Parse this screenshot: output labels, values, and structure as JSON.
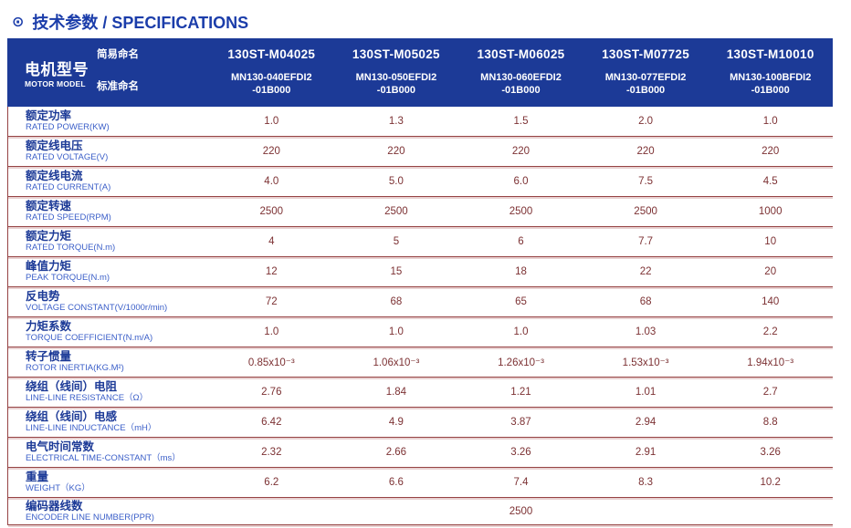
{
  "page_title": {
    "icon": "⊙",
    "text": "技术参数 / SPECIFICATIONS"
  },
  "colors": {
    "header_background": "#1c3a97",
    "title_blue": "#1b3daa",
    "label_zh_blue": "#1c3a97",
    "label_en_blue": "#3a5ec8",
    "value_maroon": "#7c3133",
    "divider_maroon": "#964344"
  },
  "header": {
    "motor_model_zh": "电机型号",
    "motor_model_en": "MOTOR MODEL",
    "simple_naming_label": "简易命名",
    "standard_naming_label": "标准命名",
    "models": [
      {
        "simple": "130ST-M04025",
        "standard_line1": "MN130-040EFDI2",
        "standard_line2": "-01B000"
      },
      {
        "simple": "130ST-M05025",
        "standard_line1": "MN130-050EFDI2",
        "standard_line2": "-01B000"
      },
      {
        "simple": "130ST-M06025",
        "standard_line1": "MN130-060EFDI2",
        "standard_line2": "-01B000"
      },
      {
        "simple": "130ST-M07725",
        "standard_line1": "MN130-077EFDI2",
        "standard_line2": "-01B000"
      },
      {
        "simple": "130ST-M10010",
        "standard_line1": "MN130-100BFDI2",
        "standard_line2": "-01B000"
      }
    ]
  },
  "rows": [
    {
      "zh": "额定功率",
      "en": "RATED POWER(KW)",
      "values": [
        "1.0",
        "1.3",
        "1.5",
        "2.0",
        "1.0"
      ]
    },
    {
      "zh": "额定线电压",
      "en": "RATED VOLTAGE(V)",
      "values": [
        "220",
        "220",
        "220",
        "220",
        "220"
      ]
    },
    {
      "zh": "额定线电流",
      "en": "RATED CURRENT(A)",
      "values": [
        "4.0",
        "5.0",
        "6.0",
        "7.5",
        "4.5"
      ]
    },
    {
      "zh": "额定转速",
      "en": "RATED SPEED(RPM)",
      "values": [
        "2500",
        "2500",
        "2500",
        "2500",
        "1000"
      ]
    },
    {
      "zh": "额定力矩",
      "en": "RATED TORQUE(N.m)",
      "values": [
        "4",
        "5",
        "6",
        "7.7",
        "10"
      ]
    },
    {
      "zh": "峰值力矩",
      "en": "PEAK TORQUE(N.m)",
      "values": [
        "12",
        "15",
        "18",
        "22",
        "20"
      ]
    },
    {
      "zh": "反电势",
      "en": "VOLTAGE CONSTANT(V/1000r/min)",
      "values": [
        "72",
        "68",
        "65",
        "68",
        "140"
      ]
    },
    {
      "zh": "力矩系数",
      "en": "TORQUE COEFFICIENT(N.m/A)",
      "values": [
        "1.0",
        "1.0",
        "1.0",
        "1.03",
        "2.2"
      ]
    },
    {
      "zh": "转子惯量",
      "en": "ROTOR INERTIA(KG.M²)",
      "values": [
        "0.85x10⁻³",
        "1.06x10⁻³",
        "1.26x10⁻³",
        "1.53x10⁻³",
        "1.94x10⁻³"
      ]
    },
    {
      "zh": "绕组（线间）电阻",
      "en": "LINE-LINE RESISTANCE（Ω）",
      "values": [
        "2.76",
        "1.84",
        "1.21",
        "1.01",
        "2.7"
      ]
    },
    {
      "zh": "绕组（线间）电感",
      "en": "LINE-LINE INDUCTANCE（mH）",
      "values": [
        "6.42",
        "4.9",
        "3.87",
        "2.94",
        "8.8"
      ]
    },
    {
      "zh": "电气时间常数",
      "en": "ELECTRICAL TIME-CONSTANT（ms）",
      "values": [
        "2.32",
        "2.66",
        "3.26",
        "2.91",
        "3.26"
      ]
    },
    {
      "zh": "重量",
      "en": "WEIGHT（KG）",
      "values": [
        "6.2",
        "6.6",
        "7.4",
        "8.3",
        "10.2"
      ]
    }
  ],
  "encoder_row": {
    "zh": "编码器线数",
    "en": "ENCODER LINE NUMBER(PPR)",
    "merged_value": "2500"
  }
}
